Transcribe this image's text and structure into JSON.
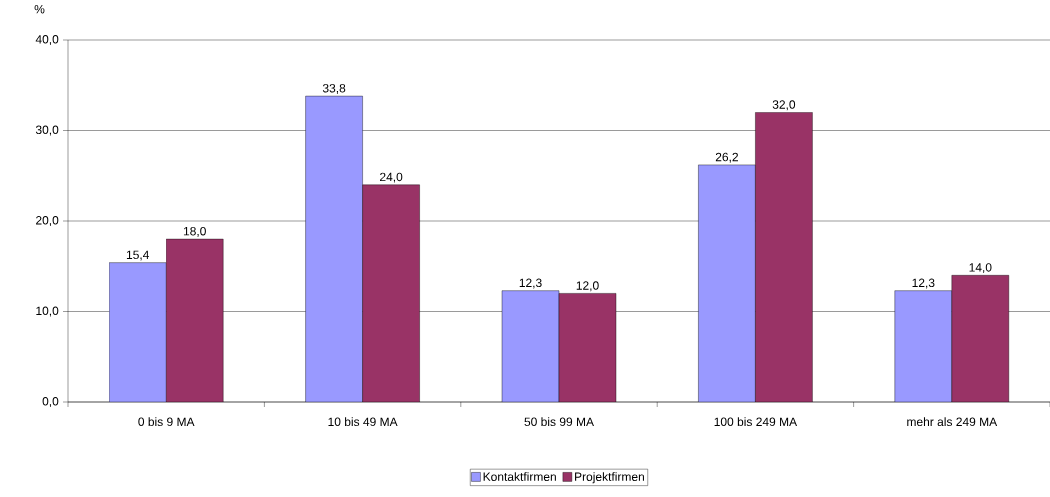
{
  "chart_data": {
    "type": "bar",
    "ylabel": "%",
    "categories": [
      "0 bis 9 MA",
      "10 bis 49 MA",
      "50 bis 99 MA",
      "100 bis 249 MA",
      "mehr als 249 MA"
    ],
    "series": [
      {
        "name": "Kontaktfirmen",
        "color": "#9999ff",
        "values": [
          15.4,
          33.8,
          12.3,
          26.2,
          12.3
        ],
        "value_labels": [
          "15,4",
          "33,8",
          "12,3",
          "26,2",
          "12,3"
        ]
      },
      {
        "name": "Projektfirmen",
        "color": "#993366",
        "values": [
          18.0,
          24.0,
          12.0,
          32.0,
          14.0
        ],
        "value_labels": [
          "18,0",
          "24,0",
          "12,0",
          "32,0",
          "14,0"
        ]
      }
    ],
    "ylim": [
      0,
      40
    ],
    "yticks": [
      {
        "value": 0,
        "label": "0,0"
      },
      {
        "value": 10,
        "label": "10,0"
      },
      {
        "value": 20,
        "label": "20,0"
      },
      {
        "value": 30,
        "label": "30,0"
      },
      {
        "value": 40,
        "label": "40,0"
      }
    ],
    "grid": "y",
    "legend": "bottom"
  }
}
